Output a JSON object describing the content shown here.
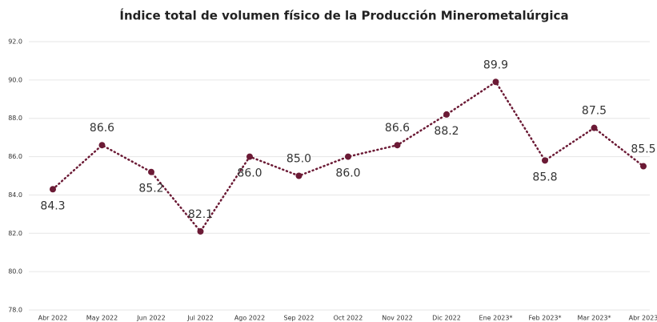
{
  "chart_data": {
    "type": "line",
    "title": "Índice total de volumen físico de la Producción Minerometalúrgica",
    "categories": [
      "Abr 2022",
      "May 2022",
      "Jun 2022",
      "Jul 2022",
      "Ago 2022",
      "Sep 2022",
      "Oct 2022",
      "Nov 2022",
      "Dic 2022",
      "Ene 2023*",
      "Feb 2023*",
      "Mar 2023*",
      "Abr 2023"
    ],
    "values": [
      84.3,
      86.6,
      85.2,
      82.1,
      86.0,
      85.0,
      86.0,
      86.6,
      88.2,
      89.9,
      85.8,
      87.5,
      85.5
    ],
    "value_labels": [
      "84.3",
      "86.6",
      "85.2",
      "82.1",
      "86.0",
      "85.0",
      "86.0",
      "86.6",
      "88.2",
      "89.9",
      "85.8",
      "87.5",
      "85.5"
    ],
    "color": "#6b1a35",
    "ylim": [
      78,
      92
    ],
    "yticks": [
      {
        "value": 78,
        "label": "78.0"
      },
      {
        "value": 80,
        "label": "80.0"
      },
      {
        "value": 82,
        "label": "82.0"
      },
      {
        "value": 84,
        "label": "84.0"
      },
      {
        "value": 86,
        "label": "86.0"
      },
      {
        "value": 88,
        "label": "88.0"
      },
      {
        "value": 90,
        "label": "90.0"
      },
      {
        "value": 92,
        "label": "92.0"
      }
    ],
    "grid": true
  }
}
